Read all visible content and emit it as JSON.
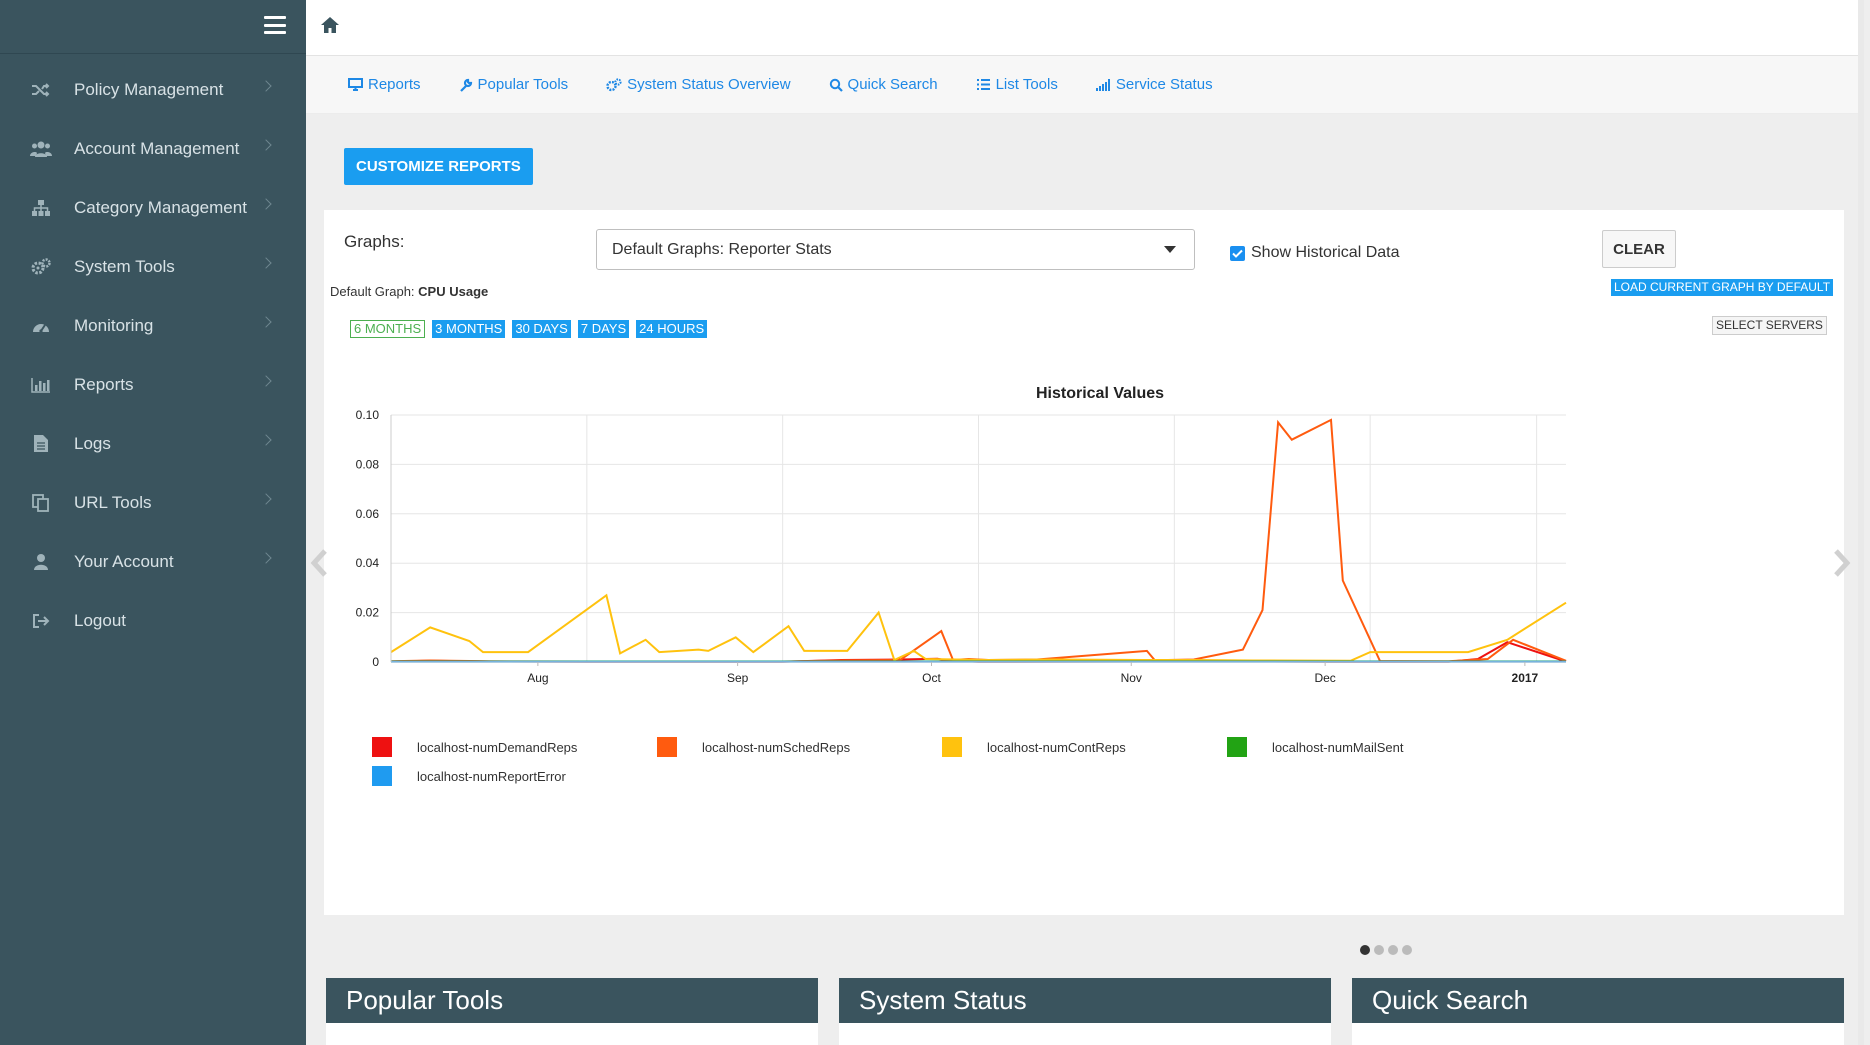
{
  "sidebar": {
    "items": [
      {
        "label": "Policy Management",
        "icon": "shuffle-icon"
      },
      {
        "label": "Account Management",
        "icon": "users-icon"
      },
      {
        "label": "Category Management",
        "icon": "sitemap-icon"
      },
      {
        "label": "System Tools",
        "icon": "cogs-icon"
      },
      {
        "label": "Monitoring",
        "icon": "dashboard-icon"
      },
      {
        "label": "Reports",
        "icon": "bar-chart-icon"
      },
      {
        "label": "Logs",
        "icon": "file-icon"
      },
      {
        "label": "URL Tools",
        "icon": "copy-icon"
      },
      {
        "label": "Your Account",
        "icon": "user-icon"
      },
      {
        "label": "Logout",
        "icon": "sign-out-icon"
      }
    ]
  },
  "subnav": {
    "reports": "Reports",
    "popular_tools": "Popular Tools",
    "system_status_overview": "System Status Overview",
    "quick_search": "Quick Search",
    "list_tools": "List Tools",
    "service_status": "Service Status"
  },
  "customize_label": "CUSTOMIZE REPORTS",
  "graphs": {
    "label": "Graphs:",
    "selected": "Default Graphs: Reporter Stats",
    "show_historical": "Show Historical Data",
    "clear": "CLEAR",
    "load_default": "LOAD CURRENT GRAPH BY DEFAULT",
    "default_graph_prefix": "Default Graph:",
    "default_graph_name": "CPU Usage",
    "select_servers": "SELECT SERVERS",
    "ranges": [
      "6 MONTHS",
      "3 MONTHS",
      "30 DAYS",
      "7 DAYS",
      "24 HOURS"
    ]
  },
  "chart_data": {
    "type": "line",
    "title": "Historical Values",
    "xlabel": "",
    "ylabel": "",
    "ylim": [
      0,
      0.1
    ],
    "yticks": [
      "0",
      "0.02",
      "0.04",
      "0.06",
      "0.08",
      "0.10"
    ],
    "xticks": [
      "Aug",
      "Sep",
      "Oct",
      "Nov",
      "Dec",
      "2017"
    ],
    "x_tick_positions": [
      0.75,
      1.77,
      2.76,
      3.78,
      4.77,
      5.79
    ],
    "grid": true,
    "legend_placement": "bottom",
    "series": [
      {
        "name": "localhost-numDemandReps",
        "color": "#ee1111",
        "points": [
          [
            0,
            0.0002
          ],
          [
            0.2,
            0.0005
          ],
          [
            0.5,
            0.0002
          ],
          [
            1,
            0.0001
          ],
          [
            2,
            0.0001
          ],
          [
            2.3,
            0.0008
          ],
          [
            2.6,
            0.001
          ],
          [
            2.79,
            0.0013
          ],
          [
            2.84,
            0.0006
          ],
          [
            3,
            0.0001
          ],
          [
            4,
            0.0002
          ],
          [
            4.5,
            0.0002
          ],
          [
            4.8,
            0.0001
          ],
          [
            5.4,
            0.0001
          ],
          [
            5.55,
            0.0012
          ],
          [
            5.7,
            0.008
          ],
          [
            6.0,
            0.0002
          ]
        ]
      },
      {
        "name": "localhost-numSchedReps",
        "color": "#ff5b0f",
        "points": [
          [
            0,
            0.0003
          ],
          [
            0.2,
            0.0006
          ],
          [
            0.5,
            0.0003
          ],
          [
            1,
            0.0002
          ],
          [
            2,
            0.0002
          ],
          [
            2.3,
            0.0006
          ],
          [
            2.6,
            0.0008
          ],
          [
            2.81,
            0.0125
          ],
          [
            2.87,
            0.0008
          ],
          [
            2.95,
            0.0012
          ],
          [
            3.05,
            0.0008
          ],
          [
            3.3,
            0.001
          ],
          [
            3.86,
            0.0045
          ],
          [
            3.9,
            0.0007
          ],
          [
            4.1,
            0.001
          ],
          [
            4.35,
            0.005
          ],
          [
            4.45,
            0.021
          ],
          [
            4.53,
            0.097
          ],
          [
            4.6,
            0.09
          ],
          [
            4.8,
            0.098
          ],
          [
            4.86,
            0.033
          ],
          [
            5.05,
            0.0004
          ],
          [
            5.4,
            0.0003
          ],
          [
            5.6,
            0.0012
          ],
          [
            5.73,
            0.009
          ],
          [
            6.0,
            0.0005
          ]
        ]
      },
      {
        "name": "localhost-numContReps",
        "color": "#ffc20e",
        "points": [
          [
            0,
            0.004
          ],
          [
            0.2,
            0.014
          ],
          [
            0.4,
            0.0085
          ],
          [
            0.47,
            0.004
          ],
          [
            0.7,
            0.004
          ],
          [
            1.1,
            0.027
          ],
          [
            1.17,
            0.0035
          ],
          [
            1.3,
            0.009
          ],
          [
            1.37,
            0.004
          ],
          [
            1.57,
            0.005
          ],
          [
            1.62,
            0.0045
          ],
          [
            1.76,
            0.01
          ],
          [
            1.85,
            0.004
          ],
          [
            2.03,
            0.0145
          ],
          [
            2.11,
            0.0045
          ],
          [
            2.33,
            0.0045
          ],
          [
            2.49,
            0.02
          ],
          [
            2.57,
            0.0008
          ],
          [
            2.67,
            0.0045
          ],
          [
            2.73,
            0.0012
          ],
          [
            3.05,
            0.0008
          ],
          [
            3.4,
            0.001
          ],
          [
            3.9,
            0.0008
          ],
          [
            4.1,
            0.0008
          ],
          [
            4.4,
            0.0006
          ],
          [
            4.9,
            0.0005
          ],
          [
            5.0,
            0.004
          ],
          [
            5.5,
            0.004
          ],
          [
            5.7,
            0.009
          ],
          [
            6.0,
            0.024
          ]
        ]
      },
      {
        "name": "localhost-numMailSent",
        "color": "#22a314",
        "points": [
          [
            0,
            0.0002
          ],
          [
            6,
            0.0002
          ]
        ]
      },
      {
        "name": "localhost-numReportError",
        "color": "#1f9bf0",
        "points": [
          [
            0,
            0.0001
          ],
          [
            6,
            0.0001
          ]
        ]
      }
    ]
  },
  "cards": {
    "popular_tools": "Popular Tools",
    "system_status": "System Status",
    "quick_search": "Quick Search"
  },
  "colors": {
    "sidebar_bg": "#3a545e",
    "accent": "#1a9df0",
    "link": "#1e88e5"
  }
}
